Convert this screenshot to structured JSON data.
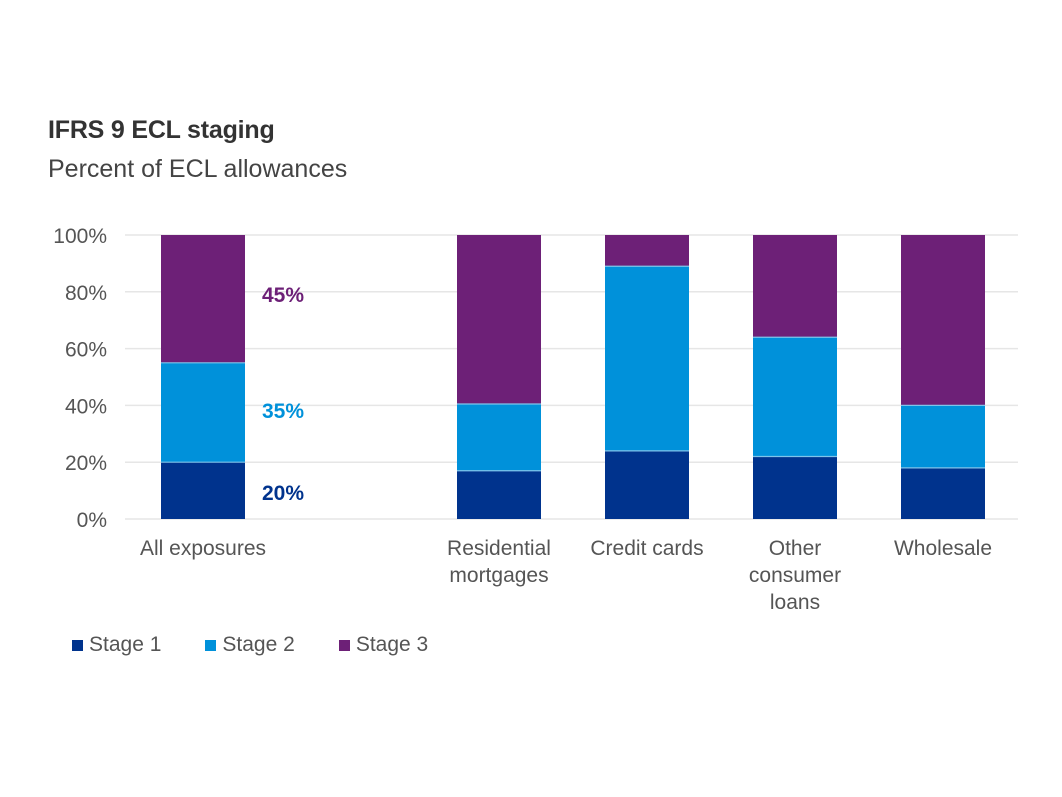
{
  "chart_data": {
    "type": "bar",
    "stacked": true,
    "title": "IFRS 9 ECL staging",
    "subtitle": "Percent of ECL allowances",
    "xlabel": "",
    "ylabel": "",
    "ylim": [
      0,
      100
    ],
    "yticks": [
      0,
      20,
      40,
      60,
      80,
      100
    ],
    "ytick_labels": [
      "0%",
      "20%",
      "40%",
      "60%",
      "80%",
      "100%"
    ],
    "grid": true,
    "categories": [
      [
        "All exposures"
      ],
      [
        "Residential",
        "mortgages"
      ],
      [
        "Credit cards"
      ],
      [
        "Other",
        "consumer",
        "loans"
      ],
      [
        "Wholesale"
      ]
    ],
    "series": [
      {
        "name": "Stage 1",
        "color": "#00338D",
        "values": [
          20,
          17,
          24,
          22,
          18
        ]
      },
      {
        "name": "Stage 2",
        "color": "#0091DA",
        "values": [
          35,
          23.5,
          65,
          42,
          22
        ]
      },
      {
        "name": "Stage 3",
        "color": "#6D2077",
        "values": [
          45,
          59.5,
          11,
          36,
          60
        ]
      }
    ],
    "annotations": [
      {
        "category": 0,
        "series": 2,
        "text": "45%",
        "color": "#6D2077"
      },
      {
        "category": 0,
        "series": 1,
        "text": "35%",
        "color": "#0091DA"
      },
      {
        "category": 0,
        "series": 0,
        "text": "20%",
        "color": "#00338D"
      }
    ],
    "legend_position": "bottom-left"
  }
}
